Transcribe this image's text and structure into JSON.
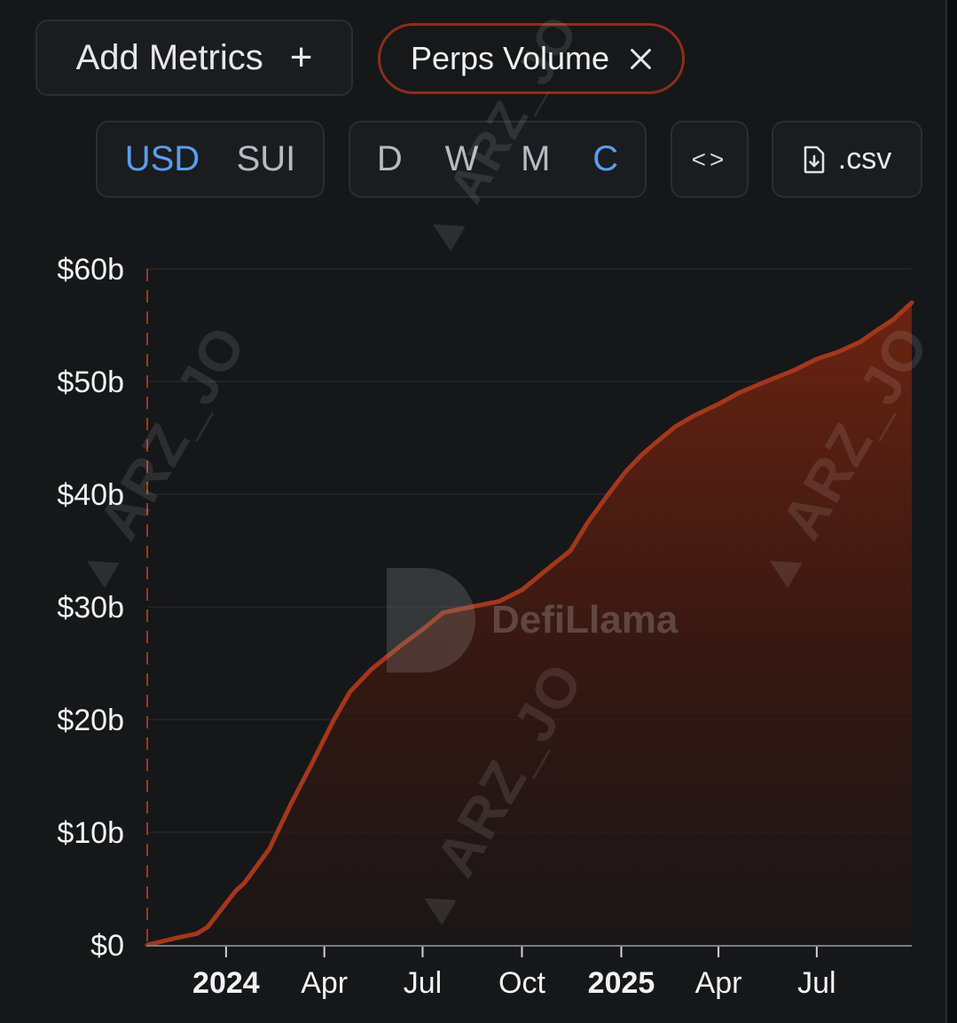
{
  "toolbar": {
    "add_metrics_label": "Add Metrics",
    "add_metrics_icon": "+",
    "metric_chip_label": "Perps Volume",
    "currency_options": [
      "USD",
      "SUI"
    ],
    "currency_selected": "USD",
    "period_options": [
      "D",
      "W",
      "M",
      "C"
    ],
    "period_selected": "C",
    "embed_label": "<>",
    "csv_label": ".csv"
  },
  "watermark": {
    "logo_text": "DefiLlama",
    "overlay_text": "ARZ_JO"
  },
  "colors": {
    "accent": "#5a9df0",
    "series_line": "#a4371b",
    "series_fill": "#7a2610",
    "background": "#161719"
  },
  "chart_data": {
    "type": "area",
    "title": "",
    "xlabel": "",
    "ylabel": "",
    "ylim": [
      0,
      60
    ],
    "y_unit": "billion USD",
    "y_tick_labels": [
      "$0",
      "$10b",
      "$20b",
      "$30b",
      "$40b",
      "$50b",
      "$60b"
    ],
    "y_ticks": [
      0,
      10,
      20,
      30,
      40,
      50,
      60
    ],
    "xlim": [
      "2023-10-20",
      "2025-09-27"
    ],
    "x_ticks": [
      {
        "date": "2024-01-01",
        "label": "2024",
        "bold": true
      },
      {
        "date": "2024-04-01",
        "label": "Apr",
        "bold": false
      },
      {
        "date": "2024-07-01",
        "label": "Jul",
        "bold": false
      },
      {
        "date": "2024-10-01",
        "label": "Oct",
        "bold": false
      },
      {
        "date": "2025-01-01",
        "label": "2025",
        "bold": true
      },
      {
        "date": "2025-04-01",
        "label": "Apr",
        "bold": false
      },
      {
        "date": "2025-07-01",
        "label": "Jul",
        "bold": false
      }
    ],
    "grid": true,
    "marker_line_date": "2023-10-20",
    "series": [
      {
        "x": [
          "2023-10-20",
          "2023-11-15",
          "2023-12-05",
          "2023-12-15",
          "2024-01-10",
          "2024-01-18",
          "2024-02-10",
          "2024-02-20",
          "2024-03-01",
          "2024-03-20",
          "2024-04-10",
          "2024-04-25",
          "2024-05-15",
          "2024-06-10",
          "2024-07-01",
          "2024-07-20",
          "2024-08-15",
          "2024-09-10",
          "2024-10-01",
          "2024-10-20",
          "2024-11-15",
          "2024-12-01",
          "2024-12-20",
          "2025-01-05",
          "2025-01-20",
          "2025-02-01",
          "2025-02-20",
          "2025-03-10",
          "2025-04-01",
          "2025-04-20",
          "2025-05-15",
          "2025-06-10",
          "2025-07-01",
          "2025-07-20",
          "2025-08-10",
          "2025-08-25",
          "2025-09-10",
          "2025-09-27"
        ],
        "values": [
          0,
          0.6,
          1.0,
          1.6,
          4.8,
          5.5,
          8.5,
          10.5,
          12.5,
          16.0,
          20.0,
          22.5,
          24.5,
          26.5,
          28.0,
          29.5,
          30.0,
          30.5,
          31.5,
          33.0,
          35.0,
          37.5,
          40.0,
          42.0,
          43.5,
          44.5,
          46.0,
          47.0,
          48.0,
          49.0,
          50.0,
          51.0,
          52.0,
          52.6,
          53.5,
          54.5,
          55.5,
          57.0
        ]
      }
    ]
  }
}
